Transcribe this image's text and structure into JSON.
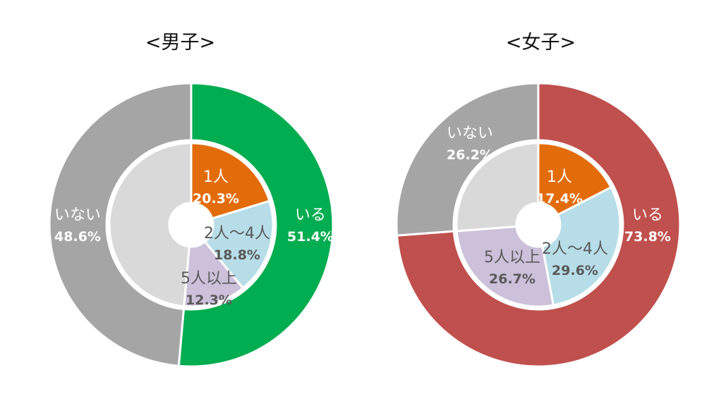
{
  "chart_data": [
    {
      "type": "pie",
      "title": "<男子>",
      "outer": [
        {
          "label": "いる",
          "value": 51.4,
          "value_label": "51.4%",
          "color": "#00ad50"
        },
        {
          "label": "いない",
          "value": 48.6,
          "value_label": "48.6%",
          "color": "#a5a5a5"
        }
      ],
      "inner": [
        {
          "label": "1人",
          "value": 20.3,
          "value_label": "20.3%",
          "color": "#e36c0a"
        },
        {
          "label": "2人〜4人",
          "value": 18.8,
          "value_label": "18.8%",
          "color": "#b7dde8"
        },
        {
          "label": "5人以上",
          "value": 12.3,
          "value_label": "12.3%",
          "color": "#ccc0da"
        },
        {
          "label": "",
          "value": 48.6,
          "value_label": "",
          "color": "#d9d9d9"
        }
      ]
    },
    {
      "type": "pie",
      "title": "<女子>",
      "outer": [
        {
          "label": "いる",
          "value": 73.8,
          "value_label": "73.8%",
          "color": "#c0504d"
        },
        {
          "label": "いない",
          "value": 26.2,
          "value_label": "26.2%",
          "color": "#a5a5a5"
        }
      ],
      "inner": [
        {
          "label": "1人",
          "value": 17.4,
          "value_label": "17.4%",
          "color": "#e36c0a"
        },
        {
          "label": "2人〜4人",
          "value": 29.6,
          "value_label": "29.6%",
          "color": "#b7dde8"
        },
        {
          "label": "5人以上",
          "value": 26.7,
          "value_label": "26.7%",
          "color": "#ccc0da"
        },
        {
          "label": "",
          "value": 26.2,
          "value_label": "",
          "color": "#d9d9d9"
        }
      ]
    }
  ]
}
